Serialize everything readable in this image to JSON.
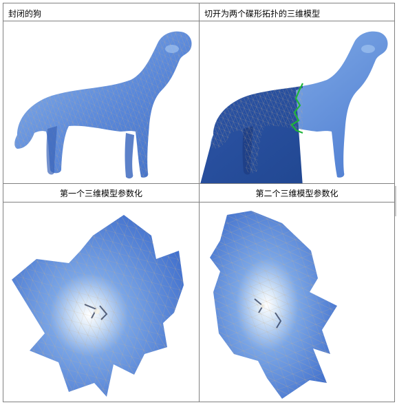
{
  "table": {
    "row1": {
      "left_caption": "封闭的狗",
      "right_caption": "切开为两个碟形拓扑的三维模型"
    },
    "row2": {
      "left_caption": "第一个三维模型参数化",
      "right_caption": "第二个三维模型参数化"
    }
  },
  "colors": {
    "mesh_blue": "#4f7fd6",
    "mesh_dark_blue": "#2f58b0",
    "mesh_light_blue": "#9fc6f2",
    "cut_green": "#1fb53a",
    "wire": "#c9b08a",
    "border": "#808080"
  }
}
